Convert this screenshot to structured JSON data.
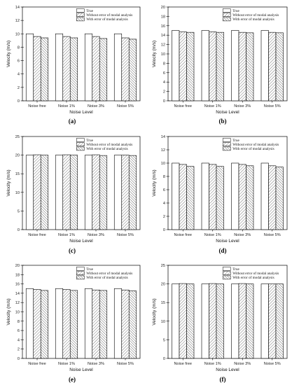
{
  "chart_data": [
    {
      "panel": "(a)",
      "type": "bar",
      "categories": [
        "Noise free",
        "Noise 1%",
        "Noise 3%",
        "Noise 5%"
      ],
      "series": [
        {
          "name": "True",
          "values": [
            10,
            10,
            10,
            10
          ]
        },
        {
          "name": "Without error of modal analysis",
          "values": [
            9.6,
            9.6,
            9.6,
            9.4
          ]
        },
        {
          "name": "With error of modal analysis",
          "values": [
            9.4,
            9.4,
            9.3,
            9.2
          ]
        }
      ],
      "xlabel": "Noise Level",
      "ylabel": "Velocity (m/s)",
      "ylim": [
        0,
        14
      ],
      "yticks": [
        0,
        2,
        4,
        6,
        8,
        10,
        12,
        14
      ],
      "legend": "top-right",
      "grid": false
    },
    {
      "panel": "(b)",
      "type": "bar",
      "categories": [
        "Noise free",
        "Noise 1%",
        "Noise 3%",
        "Noise 5%"
      ],
      "series": [
        {
          "name": "True",
          "values": [
            15,
            15,
            15,
            15
          ]
        },
        {
          "name": "Without error of modal analysis",
          "values": [
            14.7,
            14.7,
            14.6,
            14.6
          ]
        },
        {
          "name": "With error of modal analysis",
          "values": [
            14.6,
            14.6,
            14.5,
            14.5
          ]
        }
      ],
      "xlabel": "Noise Level",
      "ylabel": "Velocity (m/s)",
      "ylim": [
        0,
        20
      ],
      "yticks": [
        0,
        2,
        4,
        6,
        8,
        10,
        12,
        14,
        16,
        18,
        20
      ],
      "legend": "top-right",
      "grid": false
    },
    {
      "panel": "(c)",
      "type": "bar",
      "categories": [
        "Noise free",
        "Noise 1%",
        "Noise 3%",
        "Noise 5%"
      ],
      "series": [
        {
          "name": "True",
          "values": [
            20,
            20,
            20,
            20
          ]
        },
        {
          "name": "Without error of modal analysis",
          "values": [
            20.1,
            20.1,
            20.1,
            20.0
          ]
        },
        {
          "name": "With error of modal analysis",
          "values": [
            20.0,
            20.0,
            19.9,
            19.9
          ]
        }
      ],
      "xlabel": "Noise Level",
      "ylabel": "Velocity (m/s)",
      "ylim": [
        0,
        25
      ],
      "yticks": [
        0,
        5,
        10,
        15,
        20,
        25
      ],
      "legend": "top-right",
      "grid": false
    },
    {
      "panel": "(d)",
      "type": "bar",
      "categories": [
        "Noise free",
        "Noise 1%",
        "Noise 3%",
        "Noise 5%"
      ],
      "series": [
        {
          "name": "True",
          "values": [
            10,
            10,
            10,
            10
          ]
        },
        {
          "name": "Without error of modal analysis",
          "values": [
            9.8,
            9.8,
            9.8,
            9.6
          ]
        },
        {
          "name": "With error of modal analysis",
          "values": [
            9.5,
            9.5,
            9.6,
            9.4
          ]
        }
      ],
      "xlabel": "Noise Level",
      "ylabel": "Velocity (m/s)",
      "ylim": [
        0,
        14
      ],
      "yticks": [
        0,
        2,
        4,
        6,
        8,
        10,
        12,
        14
      ],
      "legend": "top-right",
      "grid": false
    },
    {
      "panel": "(e)",
      "type": "bar",
      "categories": [
        "Noise free",
        "Noise 1%",
        "Noise 3%",
        "Noise 5%"
      ],
      "series": [
        {
          "name": "True",
          "values": [
            15,
            15,
            15,
            15
          ]
        },
        {
          "name": "Without error of modal analysis",
          "values": [
            14.8,
            14.8,
            14.7,
            14.7
          ]
        },
        {
          "name": "With error of modal analysis",
          "values": [
            14.6,
            14.6,
            14.6,
            14.5
          ]
        }
      ],
      "xlabel": "Noise Level",
      "ylabel": "Velocity (m/s)",
      "ylim": [
        0,
        20
      ],
      "yticks": [
        0,
        2,
        4,
        6,
        8,
        10,
        12,
        14,
        16,
        18,
        20
      ],
      "legend": "top-right",
      "grid": false
    },
    {
      "panel": "(f)",
      "type": "bar",
      "categories": [
        "Noise free",
        "Noise 1%",
        "Noise 3%",
        "Noise 5%"
      ],
      "series": [
        {
          "name": "True",
          "values": [
            20,
            20,
            20,
            20
          ]
        },
        {
          "name": "Without error of modal analysis",
          "values": [
            20.1,
            20.1,
            20.1,
            20.0
          ]
        },
        {
          "name": "With error of modal analysis",
          "values": [
            20.0,
            20.0,
            20.0,
            20.0
          ]
        }
      ],
      "xlabel": "Noise Level",
      "ylabel": "Velocity (m/s)",
      "ylim": [
        0,
        25
      ],
      "yticks": [
        0,
        5,
        10,
        15,
        20,
        25
      ],
      "legend": "top-right",
      "grid": false
    }
  ]
}
